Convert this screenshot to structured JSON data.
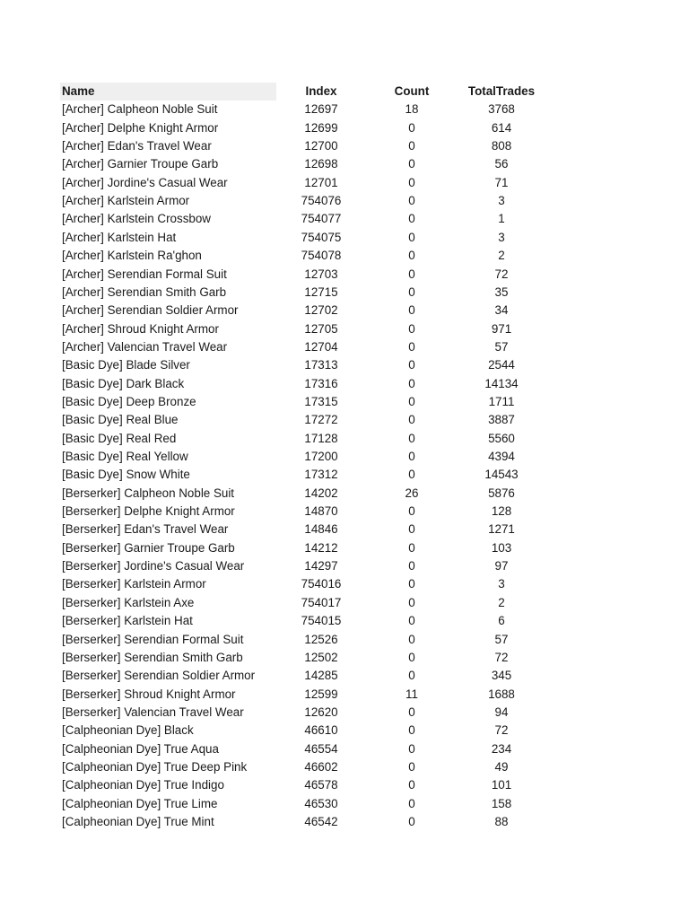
{
  "table": {
    "headers": {
      "name": "Name",
      "index": "Index",
      "count": "Count",
      "total_trades": "TotalTrades"
    },
    "header_fill": "#efefef",
    "rows": [
      [
        "[Archer] Calpheon Noble Suit",
        "12697",
        "18",
        "3768"
      ],
      [
        "[Archer] Delphe Knight Armor",
        "12699",
        "0",
        "614"
      ],
      [
        "[Archer] Edan's Travel Wear",
        "12700",
        "0",
        "808"
      ],
      [
        "[Archer] Garnier Troupe Garb",
        "12698",
        "0",
        "56"
      ],
      [
        "[Archer] Jordine's Casual Wear",
        "12701",
        "0",
        "71"
      ],
      [
        "[Archer] Karlstein Armor",
        "754076",
        "0",
        "3"
      ],
      [
        "[Archer] Karlstein Crossbow",
        "754077",
        "0",
        "1"
      ],
      [
        "[Archer] Karlstein Hat",
        "754075",
        "0",
        "3"
      ],
      [
        "[Archer] Karlstein Ra'ghon",
        "754078",
        "0",
        "2"
      ],
      [
        "[Archer] Serendian Formal Suit",
        "12703",
        "0",
        "72"
      ],
      [
        "[Archer] Serendian Smith Garb",
        "12715",
        "0",
        "35"
      ],
      [
        "[Archer] Serendian Soldier Armor",
        "12702",
        "0",
        "34"
      ],
      [
        "[Archer] Shroud Knight Armor",
        "12705",
        "0",
        "971"
      ],
      [
        "[Archer] Valencian Travel Wear",
        "12704",
        "0",
        "57"
      ],
      [
        "[Basic Dye] Blade Silver",
        "17313",
        "0",
        "2544"
      ],
      [
        "[Basic Dye] Dark Black",
        "17316",
        "0",
        "14134"
      ],
      [
        "[Basic Dye] Deep Bronze",
        "17315",
        "0",
        "1711"
      ],
      [
        "[Basic Dye] Real Blue",
        "17272",
        "0",
        "3887"
      ],
      [
        "[Basic Dye] Real Red",
        "17128",
        "0",
        "5560"
      ],
      [
        "[Basic Dye] Real Yellow",
        "17200",
        "0",
        "4394"
      ],
      [
        "[Basic Dye] Snow White",
        "17312",
        "0",
        "14543"
      ],
      [
        "[Berserker] Calpheon Noble Suit",
        "14202",
        "26",
        "5876"
      ],
      [
        "[Berserker] Delphe Knight Armor",
        "14870",
        "0",
        "128"
      ],
      [
        "[Berserker] Edan's Travel Wear",
        "14846",
        "0",
        "1271"
      ],
      [
        "[Berserker] Garnier Troupe Garb",
        "14212",
        "0",
        "103"
      ],
      [
        "[Berserker] Jordine's Casual Wear",
        "14297",
        "0",
        "97"
      ],
      [
        "[Berserker] Karlstein Armor",
        "754016",
        "0",
        "3"
      ],
      [
        "[Berserker] Karlstein Axe",
        "754017",
        "0",
        "2"
      ],
      [
        "[Berserker] Karlstein Hat",
        "754015",
        "0",
        "6"
      ],
      [
        "[Berserker] Serendian Formal Suit",
        "12526",
        "0",
        "57"
      ],
      [
        "[Berserker] Serendian Smith Garb",
        "12502",
        "0",
        "72"
      ],
      [
        "[Berserker] Serendian Soldier Armor",
        "14285",
        "0",
        "345"
      ],
      [
        "[Berserker] Shroud Knight Armor",
        "12599",
        "11",
        "1688"
      ],
      [
        "[Berserker] Valencian Travel Wear",
        "12620",
        "0",
        "94"
      ],
      [
        "[Calpheonian Dye] Black",
        "46610",
        "0",
        "72"
      ],
      [
        "[Calpheonian Dye] True Aqua",
        "46554",
        "0",
        "234"
      ],
      [
        "[Calpheonian Dye] True Deep Pink",
        "46602",
        "0",
        "49"
      ],
      [
        "[Calpheonian Dye] True Indigo",
        "46578",
        "0",
        "101"
      ],
      [
        "[Calpheonian Dye] True Lime",
        "46530",
        "0",
        "158"
      ],
      [
        "[Calpheonian Dye] True Mint",
        "46542",
        "0",
        "88"
      ]
    ]
  }
}
